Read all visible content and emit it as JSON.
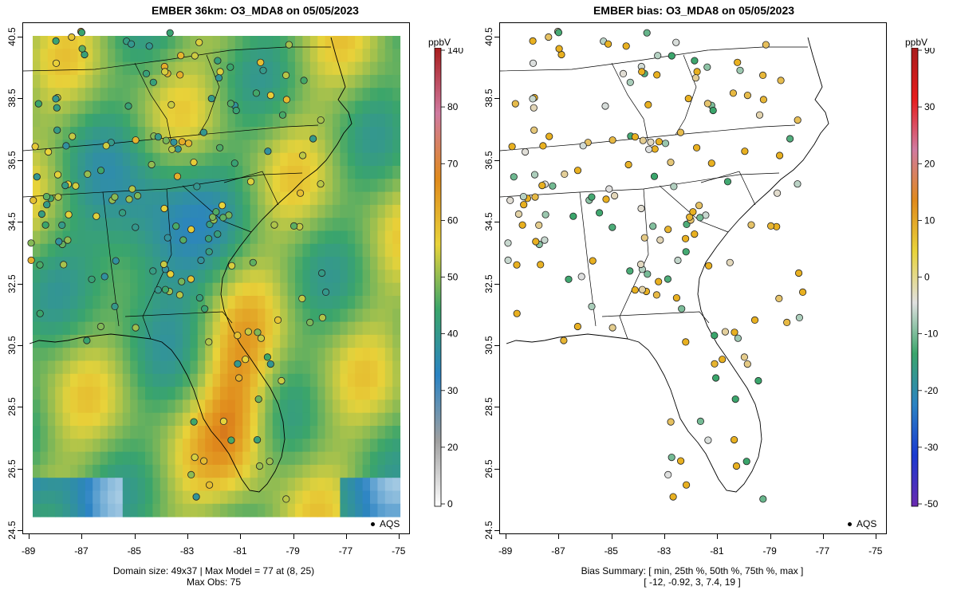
{
  "left": {
    "title": "EMBER 36km: O3_MDA8 on 05/05/2023",
    "footer_line1": "Domain size: 49x37 | Max Model = 77 at (8, 25)",
    "footer_line2": "Max Obs: 75",
    "cbar_unit": "ppbV",
    "cbar_labels": [
      "140",
      "80",
      "70",
      "60",
      "50",
      "40",
      "30",
      "20",
      "0"
    ],
    "legend": "AQS"
  },
  "right": {
    "title": "EMBER bias: O3_MDA8 on 05/05/2023",
    "footer_line1": "Bias Summary: [ min, 25th %, 50th %, 75th %, max ]",
    "footer_line2": "[ -12,   -0.92,   3,   7.4,   19 ]",
    "cbar_unit": "ppbV",
    "cbar_labels": [
      "90",
      "30",
      "20",
      "10",
      "0",
      "-10",
      "-20",
      "-30",
      "-50"
    ],
    "legend": "AQS"
  },
  "axes": {
    "x_ticks": [
      "-89",
      "-87",
      "-85",
      "-83",
      "-81",
      "-79",
      "-77",
      "-75"
    ],
    "y_ticks": [
      "40.5",
      "38.5",
      "36.5",
      "34.5",
      "32.5",
      "30.5",
      "28.5",
      "26.5",
      "24.5"
    ]
  },
  "colors": {
    "model_low": "#cfe3ee",
    "model_blue": "#2b83c3",
    "model_green": "#3aa56b",
    "model_yellow": "#e8d33a",
    "model_orange": "#e08a1c",
    "model_red": "#a81c1c",
    "bias_neg": "#3aa56b",
    "bias_zero": "#e0e0e0",
    "bias_pos": "#e8b020"
  }
}
